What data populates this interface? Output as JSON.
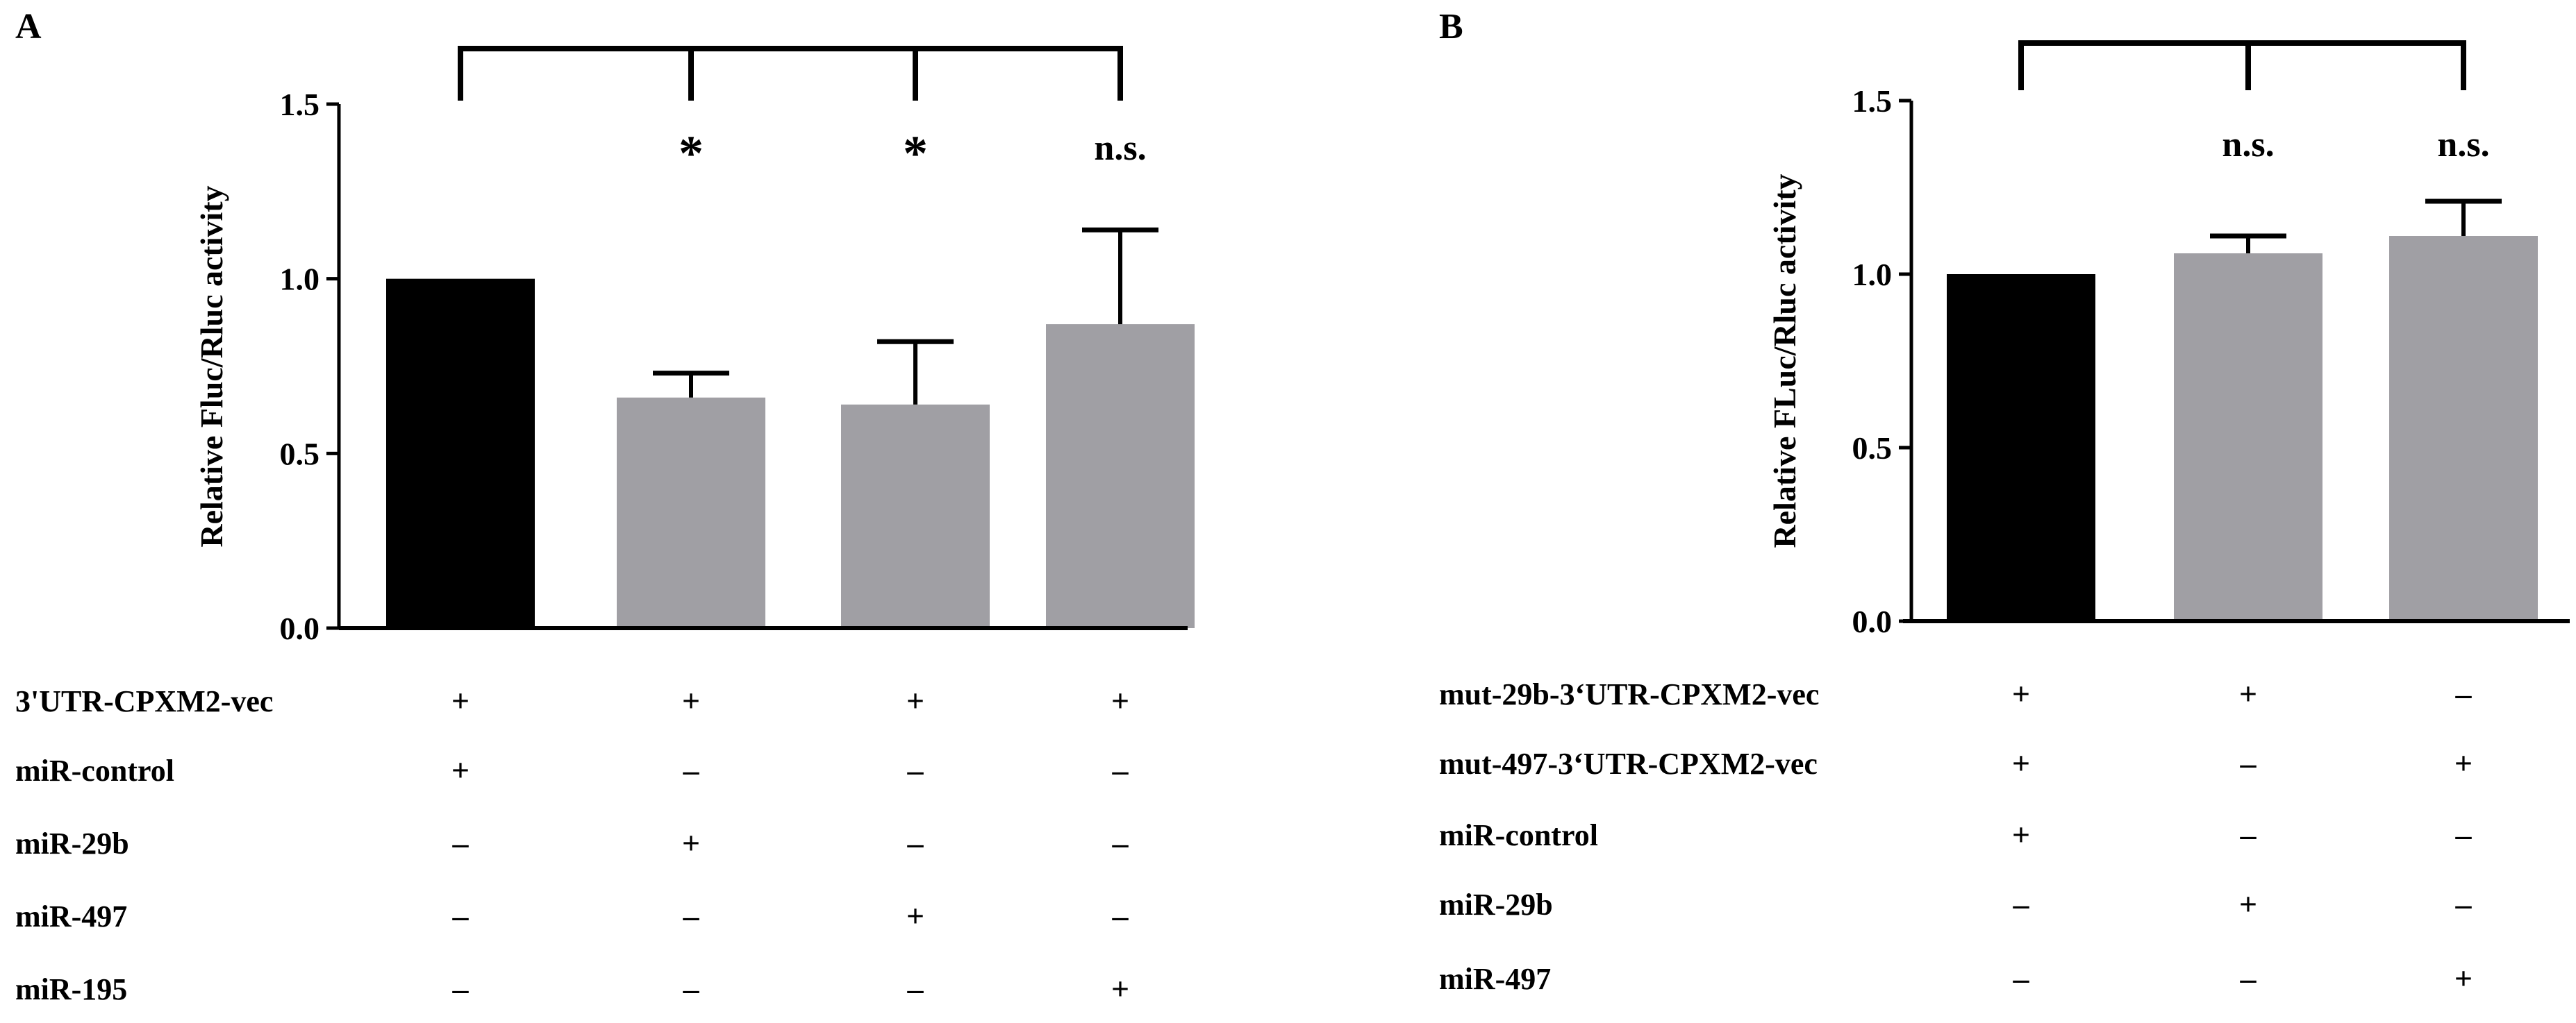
{
  "panels": [
    {
      "label": "A",
      "treatment_rows": [
        {
          "label": "3'UTR-CPXM2-vec",
          "values": [
            "+",
            "+",
            "+",
            "+"
          ]
        },
        {
          "label": "miR-control",
          "values": [
            "+",
            "–",
            "–",
            "–"
          ]
        },
        {
          "label": "miR-29b",
          "values": [
            "–",
            "+",
            "–",
            "–"
          ]
        },
        {
          "label": "miR-497",
          "values": [
            "–",
            "–",
            "+",
            "–"
          ]
        },
        {
          "label": "miR-195",
          "values": [
            "–",
            "–",
            "–",
            "+"
          ]
        }
      ]
    },
    {
      "label": "B",
      "treatment_rows": [
        {
          "label": "mut-29b-3‘UTR-CPXM2-vec",
          "values": [
            "+",
            "+",
            "–"
          ]
        },
        {
          "label": "mut-497-3‘UTR-CPXM2-vec",
          "values": [
            "+",
            "–",
            "+"
          ]
        },
        {
          "label": "miR-control",
          "values": [
            "+",
            "–",
            "–"
          ]
        },
        {
          "label": "miR-29b",
          "values": [
            "–",
            "+",
            "–"
          ]
        },
        {
          "label": "miR-497",
          "values": [
            "–",
            "–",
            "+"
          ]
        }
      ]
    }
  ],
  "chart_data": [
    {
      "type": "bar",
      "panel": "A",
      "title": "",
      "xlabel": "",
      "ylabel": "Relative Fluc/Rluc activity",
      "ylim": [
        0,
        1.5
      ],
      "yticks": [
        "0.0",
        "0.5",
        "1.0",
        "1.5"
      ],
      "grid": false,
      "values": [
        1.0,
        0.66,
        0.64,
        0.87
      ],
      "errors": [
        0,
        0.07,
        0.18,
        0.27
      ],
      "colors": [
        "#000000",
        "#a09fa4",
        "#a09fa4",
        "#a09fa4"
      ],
      "significance": [
        "",
        "*",
        "*",
        "n.s."
      ]
    },
    {
      "type": "bar",
      "panel": "B",
      "title": "",
      "xlabel": "",
      "ylabel": "Relative FLuc/Rluc activity",
      "ylim": [
        0,
        1.5
      ],
      "yticks": [
        "0.0",
        "0.5",
        "1.0",
        "1.5"
      ],
      "grid": false,
      "values": [
        1.0,
        1.06,
        1.11
      ],
      "errors": [
        0,
        0.05,
        0.1
      ],
      "colors": [
        "#000000",
        "#a09fa4",
        "#a09fa4"
      ],
      "significance": [
        "",
        "n.s.",
        "n.s."
      ]
    }
  ]
}
